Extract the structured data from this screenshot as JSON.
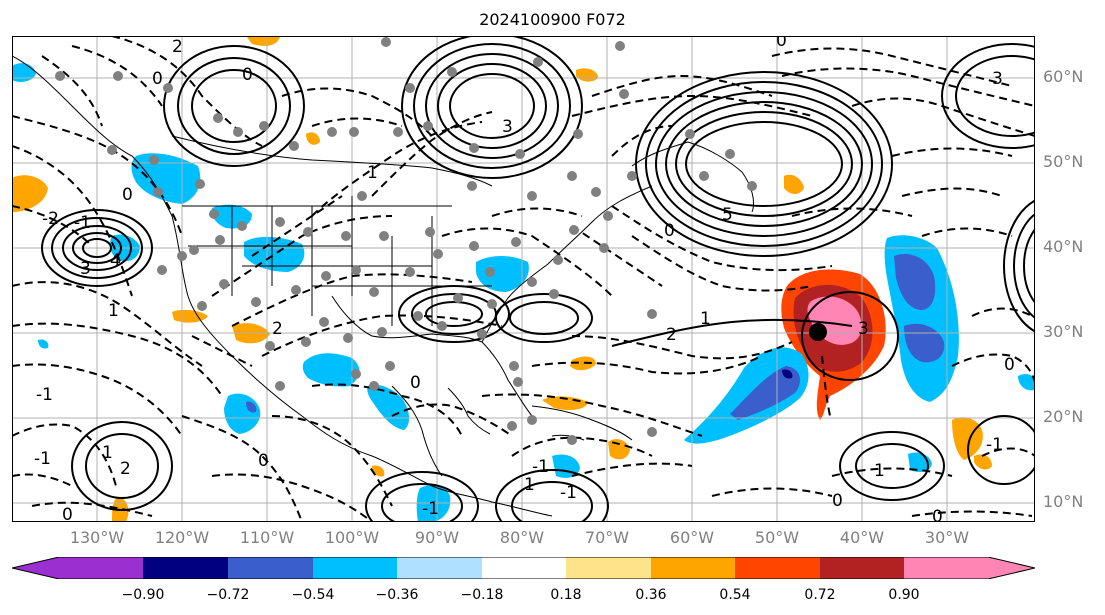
{
  "title": "2024100900 F072",
  "lat_labels": [
    "60°N",
    "50°N",
    "40°N",
    "30°N",
    "20°N",
    "10°N"
  ],
  "lon_labels": [
    "130°W",
    "120°W",
    "110°W",
    "100°W",
    "90°W",
    "80°W",
    "70°W",
    "60°W",
    "50°W",
    "40°W",
    "30°W"
  ],
  "contour_labels": [
    "2",
    "0",
    "0",
    "1",
    "3",
    "4",
    "-1",
    "0",
    "-2",
    "1",
    "2",
    "3",
    "5",
    "0",
    "2",
    "1",
    "3",
    "-1",
    "0",
    "0",
    "-1",
    "1",
    "2",
    "0",
    "-1",
    "-1",
    "0",
    "1",
    "0",
    "-1",
    "0",
    "-1",
    "1",
    "3",
    "0"
  ],
  "colorbar": {
    "ticks": [
      "−0.90",
      "−0.72",
      "−0.54",
      "−0.36",
      "−0.18",
      "0.18",
      "0.36",
      "0.54",
      "0.72",
      "0.90"
    ],
    "colors": [
      "#9b30d0",
      "#000080",
      "#3a5fcd",
      "#00bfff",
      "#b0e0ff",
      "#ffffff",
      "#ffe38a",
      "#ffa500",
      "#ff4500",
      "#b22222",
      "#ff85b5"
    ]
  },
  "colors": {
    "land_outline": "#000000",
    "grid": "#b0b0b0",
    "station_dot": "#808080",
    "axis_label": "#808080"
  }
}
